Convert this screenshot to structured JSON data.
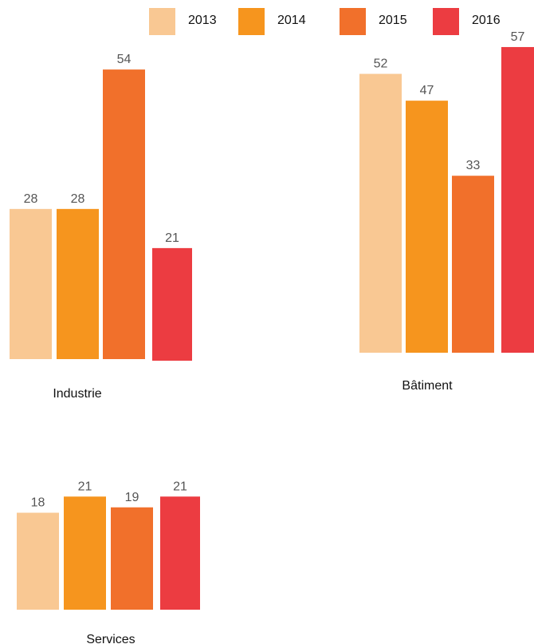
{
  "chart_data": {
    "type": "bar",
    "series_years": [
      "2013",
      "2014",
      "2015",
      "2016"
    ],
    "series_colors": [
      "#f9c893",
      "#f6951e",
      "#f1702b",
      "#ec3c41"
    ],
    "legend_position": "top-right",
    "panels": [
      {
        "category": "Industrie",
        "values": [
          28,
          28,
          54,
          21
        ]
      },
      {
        "category": "Bâtiment",
        "values": [
          52,
          47,
          33,
          57
        ]
      },
      {
        "category": "Services",
        "values": [
          18,
          21,
          19,
          21
        ]
      }
    ]
  }
}
